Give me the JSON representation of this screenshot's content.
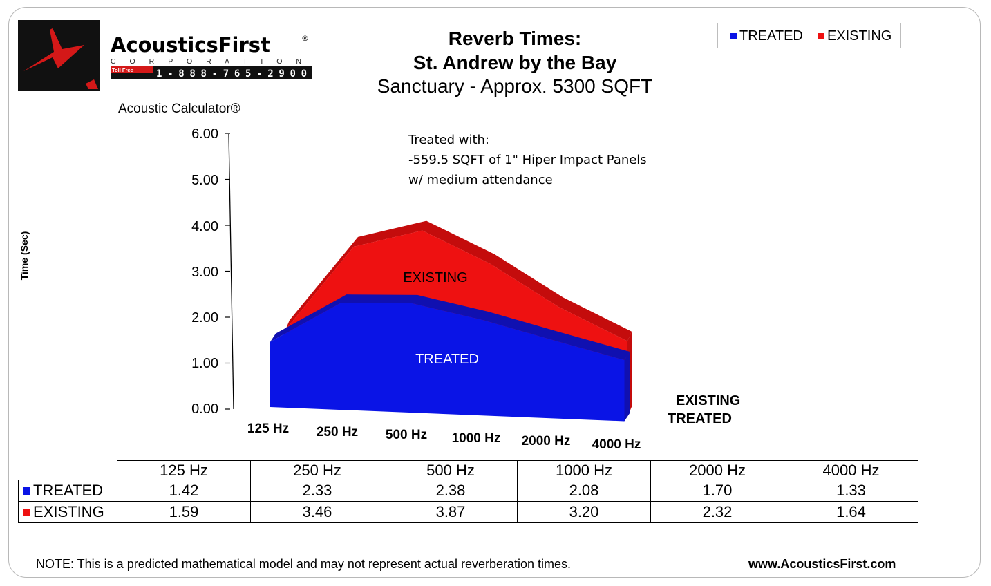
{
  "logo": {
    "brand": "AcousticsFirst",
    "registered": "®",
    "corporation": "C O R P O R A T I O N",
    "toll_free_label": "Toll Free",
    "phone": "1-888-765-2900"
  },
  "header": {
    "title_line1": "Reverb Times:",
    "title_line2": "St. Andrew by the Bay",
    "subtitle": "Sanctuary - Approx. 5300 SQFT"
  },
  "legend": [
    {
      "label": "TREATED",
      "color": "#0a14e6"
    },
    {
      "label": "EXISTING",
      "color": "#ee1111"
    }
  ],
  "calculator_label": "Acoustic Calculator®",
  "annotation": {
    "line1": "Treated with:",
    "line2": "-559.5 SQFT of 1\" Hiper Impact Panels",
    "line3": "w/ medium attendance"
  },
  "depth_labels": {
    "back": "EXISTING",
    "front": "TREATED"
  },
  "area_labels": {
    "existing": "EXISTING",
    "treated": "TREATED"
  },
  "chart_data": {
    "type": "area",
    "title": "Reverb Times: St. Andrew by the Bay",
    "subtitle": "Sanctuary - Approx. 5300 SQFT",
    "xlabel": "",
    "ylabel": "Time (Sec)",
    "categories": [
      "125 Hz",
      "250 Hz",
      "500 Hz",
      "1000 Hz",
      "2000 Hz",
      "4000 Hz"
    ],
    "series": [
      {
        "name": "TREATED",
        "values": [
          1.42,
          2.33,
          2.38,
          2.08,
          1.7,
          1.33
        ],
        "color": "#0a14e6"
      },
      {
        "name": "EXISTING",
        "values": [
          1.59,
          3.46,
          3.87,
          3.2,
          2.32,
          1.64
        ],
        "color": "#ee1111"
      }
    ],
    "ylim": [
      0,
      6
    ],
    "yticks": [
      "0.00",
      "1.00",
      "2.00",
      "3.00",
      "4.00",
      "5.00",
      "6.00"
    ],
    "grid": false,
    "legend_position": "top-right",
    "three_d": true
  },
  "table": {
    "headers": [
      "125 Hz",
      "250 Hz",
      "500 Hz",
      "1000 Hz",
      "2000 Hz",
      "4000 Hz"
    ],
    "rows": [
      {
        "label": "TREATED",
        "color": "#0a14e6",
        "values": [
          "1.42",
          "2.33",
          "2.38",
          "2.08",
          "1.70",
          "1.33"
        ]
      },
      {
        "label": "EXISTING",
        "color": "#ee1111",
        "values": [
          "1.59",
          "3.46",
          "3.87",
          "3.20",
          "2.32",
          "1.64"
        ]
      }
    ]
  },
  "footer": {
    "note": "NOTE:  This is a predicted mathematical model and may not represent actual reverberation times.",
    "website": "www.AcousticsFirst.com"
  }
}
